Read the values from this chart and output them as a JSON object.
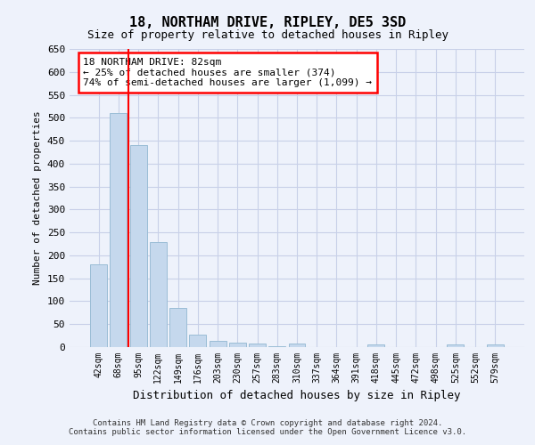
{
  "title": "18, NORTHAM DRIVE, RIPLEY, DE5 3SD",
  "subtitle": "Size of property relative to detached houses in Ripley",
  "xlabel": "Distribution of detached houses by size in Ripley",
  "ylabel": "Number of detached properties",
  "bar_labels": [
    "42sqm",
    "68sqm",
    "95sqm",
    "122sqm",
    "149sqm",
    "176sqm",
    "203sqm",
    "230sqm",
    "257sqm",
    "283sqm",
    "310sqm",
    "337sqm",
    "364sqm",
    "391sqm",
    "418sqm",
    "445sqm",
    "472sqm",
    "498sqm",
    "525sqm",
    "552sqm",
    "579sqm"
  ],
  "bar_values": [
    180,
    510,
    440,
    228,
    85,
    28,
    14,
    9,
    7,
    2,
    7,
    0,
    0,
    0,
    5,
    0,
    0,
    0,
    5,
    0,
    5
  ],
  "bar_color": "#c5d8ed",
  "bar_edge_color": "#9bbdd6",
  "vline_x": 1.5,
  "annotation_text": "18 NORTHAM DRIVE: 82sqm\n← 25% of detached houses are smaller (374)\n74% of semi-detached houses are larger (1,099) →",
  "annotation_box_color": "white",
  "annotation_box_edge_color": "red",
  "vline_color": "red",
  "ylim": [
    0,
    650
  ],
  "yticks": [
    0,
    50,
    100,
    150,
    200,
    250,
    300,
    350,
    400,
    450,
    500,
    550,
    600,
    650
  ],
  "footer_line1": "Contains HM Land Registry data © Crown copyright and database right 2024.",
  "footer_line2": "Contains public sector information licensed under the Open Government Licence v3.0.",
  "bg_color": "#eef2fb",
  "grid_color": "#c8d0e8",
  "title_fontsize": 11,
  "subtitle_fontsize": 9,
  "ylabel_fontsize": 8,
  "xlabel_fontsize": 9,
  "tick_fontsize": 8,
  "xtick_fontsize": 7,
  "annot_fontsize": 8,
  "footer_fontsize": 6.5
}
